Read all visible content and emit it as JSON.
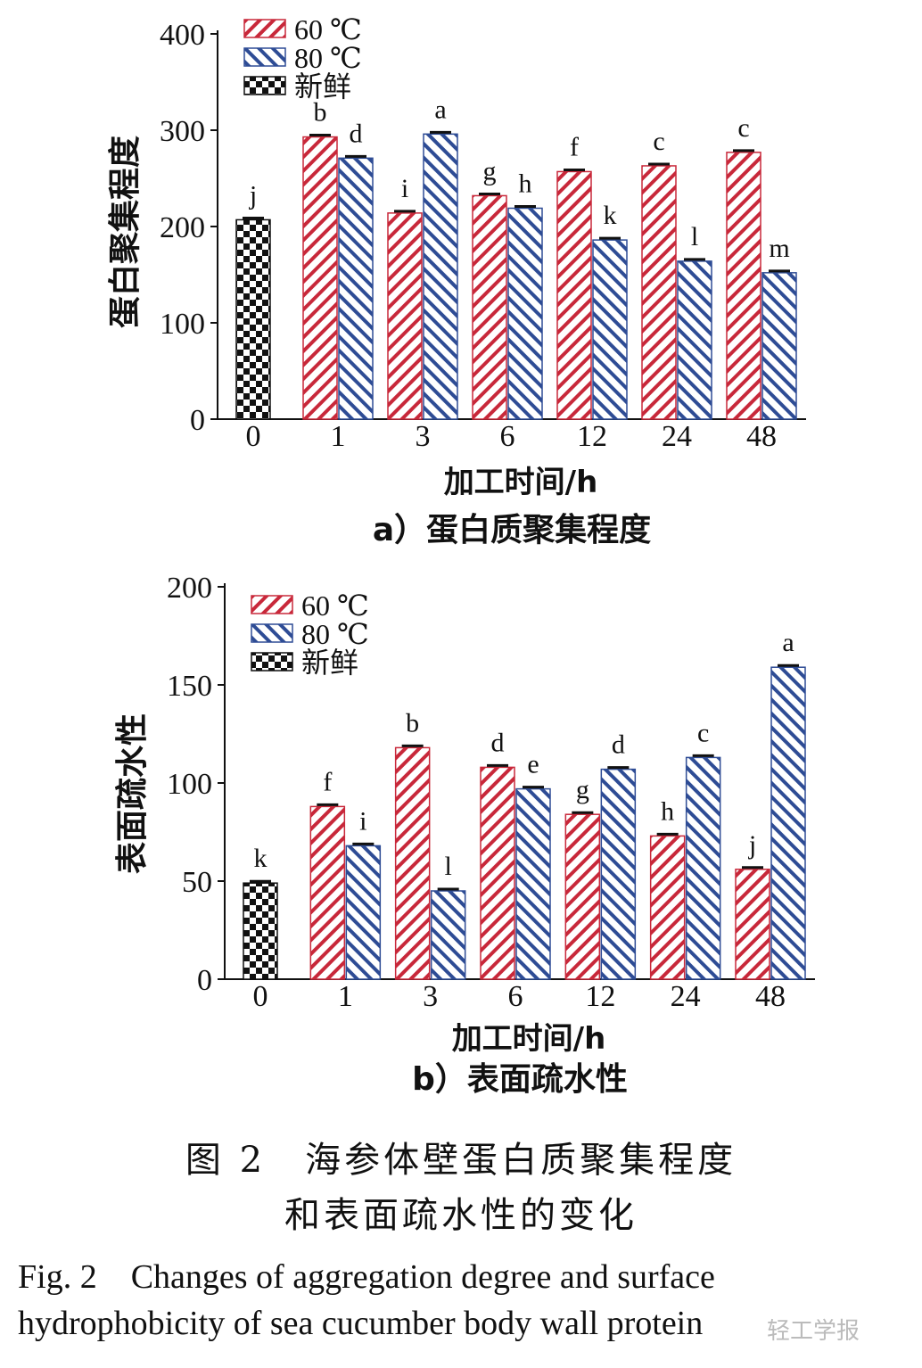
{
  "chart_data": [
    {
      "type": "bar",
      "panel_label": "a）蛋白质聚集程度",
      "xlabel": "加工时间/h",
      "ylabel": "蛋白聚集程度",
      "ylim": [
        0,
        400
      ],
      "yticks": [
        0,
        100,
        200,
        300,
        400
      ],
      "categories": [
        "0",
        "1",
        "3",
        "6",
        "12",
        "24",
        "48"
      ],
      "legend_position": "top-left",
      "series": [
        {
          "name": "60 ℃",
          "pattern": "hatch-red",
          "values": [
            null,
            293,
            214,
            232,
            257,
            263,
            277
          ],
          "letters": [
            "",
            "b",
            "i",
            "g",
            "f",
            "c",
            "c"
          ]
        },
        {
          "name": "80 ℃",
          "pattern": "hatch-blue",
          "values": [
            null,
            271,
            296,
            219,
            186,
            164,
            152
          ],
          "letters": [
            "",
            "d",
            "a",
            "h",
            "k",
            "l",
            "m"
          ]
        },
        {
          "name": "新鲜",
          "pattern": "checker",
          "values": [
            207,
            null,
            null,
            null,
            null,
            null,
            null
          ],
          "letters": [
            "j",
            "",
            "",
            "",
            "",
            "",
            ""
          ]
        }
      ]
    },
    {
      "type": "bar",
      "panel_label": "b）表面疏水性",
      "xlabel": "加工时间/h",
      "ylabel": "表面疏水性",
      "ylim": [
        0,
        200
      ],
      "yticks": [
        0,
        50,
        100,
        150,
        200
      ],
      "categories": [
        "0",
        "1",
        "3",
        "6",
        "12",
        "24",
        "48"
      ],
      "legend_position": "top-left",
      "series": [
        {
          "name": "60 ℃",
          "pattern": "hatch-red",
          "values": [
            null,
            88,
            118,
            108,
            84,
            73,
            56
          ],
          "letters": [
            "",
            "f",
            "b",
            "d",
            "g",
            "h",
            "j"
          ]
        },
        {
          "name": "80 ℃",
          "pattern": "hatch-blue",
          "values": [
            null,
            68,
            45,
            97,
            107,
            113,
            159
          ],
          "letters": [
            "",
            "i",
            "l",
            "e",
            "d",
            "c",
            "a"
          ]
        },
        {
          "name": "新鲜",
          "pattern": "checker",
          "values": [
            49,
            null,
            null,
            null,
            null,
            null,
            null
          ],
          "letters": [
            "k",
            "",
            "",
            "",
            "",
            "",
            ""
          ]
        }
      ]
    }
  ],
  "colors": {
    "red": "#c8283a",
    "blue": "#2e4c95",
    "black": "#111111"
  },
  "caption": {
    "zh_line1": "图 2　海参体壁蛋白质聚集程度",
    "zh_line2": "和表面疏水性的变化",
    "en_line1": "Fig. 2　Changes of aggregation degree and surface",
    "en_line2": "hydrophobicity of sea cucumber body wall protein"
  },
  "watermark": "轻工学报"
}
